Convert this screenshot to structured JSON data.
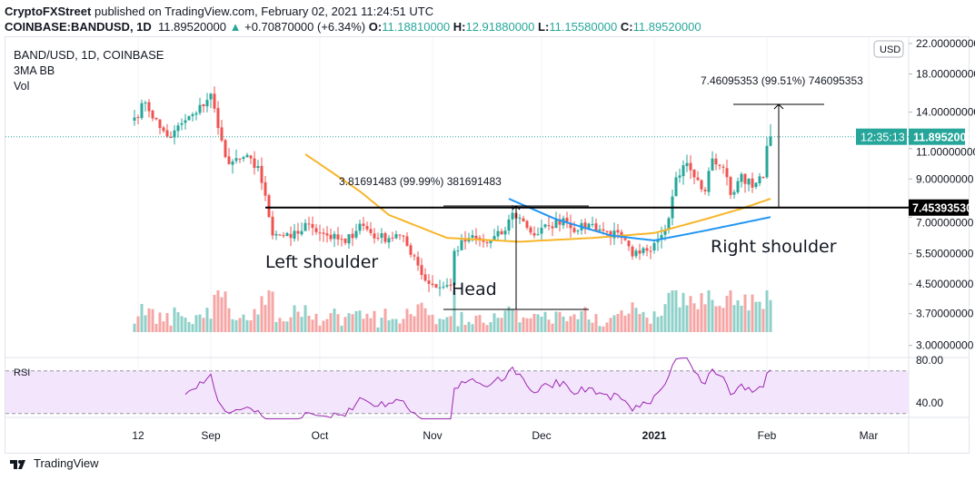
{
  "header": {
    "publisher": "CryptoFXStreet",
    "published_text": "published on TradingView.com, February 02, 2021 11:24:51 UTC",
    "symbol": "COINBASE:BANDUSD, 1D",
    "last": "11.89520000",
    "change": "+0.70870000 (+6.34%)",
    "o_label": "O:",
    "o": "11.18810000",
    "h_label": "H:",
    "h": "12.91880000",
    "l_label": "L:",
    "l": "11.15580000",
    "c_label": "C:",
    "c": "11.89520000"
  },
  "legend": {
    "title": "BAND/USD, 1D, COINBASE",
    "indicator1": "3MA BB",
    "indicator2": "Vol",
    "rsi": "RSI"
  },
  "footer": {
    "brand": "TradingView"
  },
  "colors": {
    "up": "#26a69a",
    "down": "#ef5350",
    "ma_slow": "#f7b529",
    "ma_fast": "#2196f3",
    "rsi": "#9c27b0",
    "rsi_band": "#f3e5fc",
    "last_price": "#26a69a"
  },
  "chart_data": {
    "type": "candlestick",
    "price_scale": "log",
    "ylim": [
      3,
      22
    ],
    "currency": "USD",
    "y_ticks": [
      "22.00000000",
      "18.00000000",
      "14.00000000",
      "11.00000000",
      "9.00000000",
      "7.00000000",
      "5.50000000",
      "4.50000000",
      "3.70000000",
      "3.00000000"
    ],
    "x_ticks": [
      {
        "label": "12",
        "date": "2020-08-12"
      },
      {
        "label": "Sep",
        "date": "2020-09-01"
      },
      {
        "label": "Oct",
        "date": "2020-10-01"
      },
      {
        "label": "Nov",
        "date": "2020-11-01"
      },
      {
        "label": "Dec",
        "date": "2020-12-01"
      },
      {
        "label": "2021",
        "date": "2021-01-01"
      },
      {
        "label": "Feb",
        "date": "2021-02-01"
      },
      {
        "label": "Mar",
        "date": "2021-03-01"
      }
    ],
    "close_path": [
      {
        "d": "2020-08-11",
        "c": 13.5
      },
      {
        "d": "2020-08-14",
        "c": 14.9
      },
      {
        "d": "2020-08-18",
        "c": 12.6
      },
      {
        "d": "2020-08-21",
        "c": 11.8
      },
      {
        "d": "2020-08-24",
        "c": 13.0
      },
      {
        "d": "2020-08-28",
        "c": 13.9
      },
      {
        "d": "2020-09-01",
        "c": 15.8
      },
      {
        "d": "2020-09-03",
        "c": 12.6
      },
      {
        "d": "2020-09-05",
        "c": 10.4
      },
      {
        "d": "2020-09-07",
        "c": 10.1
      },
      {
        "d": "2020-09-10",
        "c": 10.4
      },
      {
        "d": "2020-09-14",
        "c": 9.8
      },
      {
        "d": "2020-09-17",
        "c": 7.0
      },
      {
        "d": "2020-09-18",
        "c": 6.2
      },
      {
        "d": "2020-09-23",
        "c": 6.1
      },
      {
        "d": "2020-09-28",
        "c": 6.7
      },
      {
        "d": "2020-10-03",
        "c": 6.2
      },
      {
        "d": "2020-10-08",
        "c": 5.9
      },
      {
        "d": "2020-10-12",
        "c": 6.7
      },
      {
        "d": "2020-10-17",
        "c": 6.1
      },
      {
        "d": "2020-10-23",
        "c": 6.2
      },
      {
        "d": "2020-10-27",
        "c": 5.4
      },
      {
        "d": "2020-10-30",
        "c": 4.6
      },
      {
        "d": "2020-11-03",
        "c": 4.4
      },
      {
        "d": "2020-11-06",
        "c": 4.45
      },
      {
        "d": "2020-11-07",
        "c": 5.6
      },
      {
        "d": "2020-11-11",
        "c": 6.1
      },
      {
        "d": "2020-11-16",
        "c": 5.9
      },
      {
        "d": "2020-11-21",
        "c": 6.4
      },
      {
        "d": "2020-11-23",
        "c": 7.2
      },
      {
        "d": "2020-11-26",
        "c": 6.8
      },
      {
        "d": "2020-11-29",
        "c": 6.2
      },
      {
        "d": "2020-12-03",
        "c": 6.6
      },
      {
        "d": "2020-12-07",
        "c": 6.95
      },
      {
        "d": "2020-12-11",
        "c": 6.4
      },
      {
        "d": "2020-12-14",
        "c": 6.7
      },
      {
        "d": "2020-12-18",
        "c": 6.4
      },
      {
        "d": "2020-12-23",
        "c": 6.1
      },
      {
        "d": "2020-12-26",
        "c": 5.4
      },
      {
        "d": "2020-12-28",
        "c": 5.5
      },
      {
        "d": "2021-01-01",
        "c": 5.9
      },
      {
        "d": "2021-01-05",
        "c": 6.95
      },
      {
        "d": "2021-01-07",
        "c": 9.1
      },
      {
        "d": "2021-01-10",
        "c": 10.0
      },
      {
        "d": "2021-01-12",
        "c": 9.1
      },
      {
        "d": "2021-01-15",
        "c": 8.3
      },
      {
        "d": "2021-01-17",
        "c": 10.3
      },
      {
        "d": "2021-01-20",
        "c": 9.7
      },
      {
        "d": "2021-01-22",
        "c": 8.1
      },
      {
        "d": "2021-01-25",
        "c": 9.3
      },
      {
        "d": "2021-01-28",
        "c": 8.5
      },
      {
        "d": "2021-01-31",
        "c": 9.1
      },
      {
        "d": "2021-02-01",
        "c": 11.2
      },
      {
        "d": "2021-02-02",
        "c": 11.8952
      }
    ],
    "ma_slow": [
      {
        "d": "2020-09-27",
        "v": 10.6
      },
      {
        "d": "2020-10-12",
        "v": 8.3
      },
      {
        "d": "2020-10-20",
        "v": 7.1
      },
      {
        "d": "2020-11-05",
        "v": 6.1
      },
      {
        "d": "2020-11-25",
        "v": 5.95
      },
      {
        "d": "2020-12-15",
        "v": 6.1
      },
      {
        "d": "2021-01-01",
        "v": 6.3
      },
      {
        "d": "2021-01-15",
        "v": 6.9
      },
      {
        "d": "2021-01-25",
        "v": 7.4
      },
      {
        "d": "2021-02-02",
        "v": 7.9
      }
    ],
    "ma_fast": [
      {
        "d": "2020-11-22",
        "v": 7.9
      },
      {
        "d": "2020-12-05",
        "v": 6.9
      },
      {
        "d": "2020-12-20",
        "v": 6.2
      },
      {
        "d": "2021-01-01",
        "v": 6.0
      },
      {
        "d": "2021-01-15",
        "v": 6.4
      },
      {
        "d": "2021-02-02",
        "v": 7.0
      }
    ],
    "rsi": {
      "label": "RSI",
      "ticks": [
        "80.00",
        "40.00"
      ],
      "upper_band": 70,
      "lower_band": 30,
      "ylim": [
        25,
        82
      ]
    },
    "last_price": "11.89520000",
    "countdown": "12:35:13",
    "resistance": {
      "value": 7.4539353,
      "label": "7.45393530"
    },
    "annotations": {
      "left_shoulder": "Left shoulder",
      "head": "Head",
      "right_shoulder": "Right shoulder",
      "head_measure": "3.81691483 (99.99%) 381691483",
      "target_measure": "7.46095353 (99.51%) 746095353"
    }
  }
}
